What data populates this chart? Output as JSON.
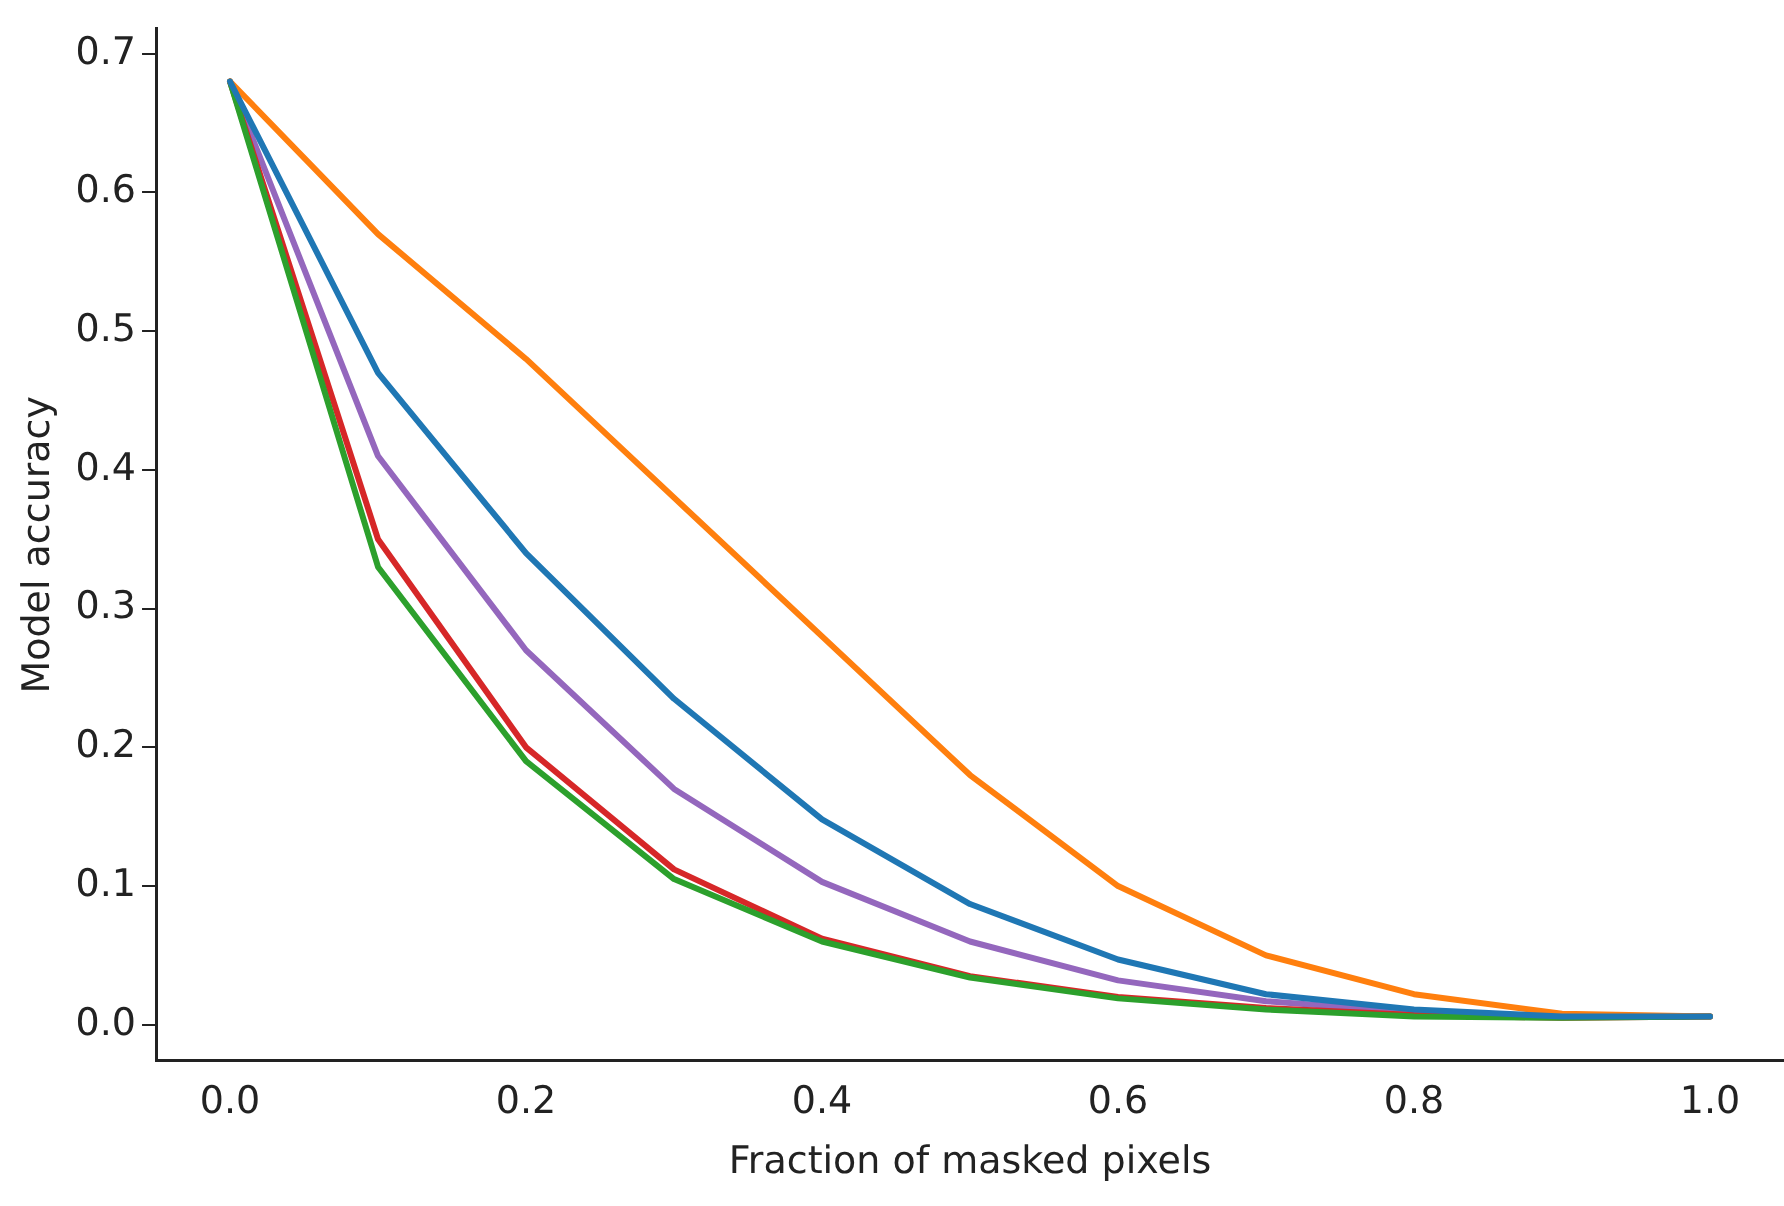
{
  "chart_data": {
    "type": "line",
    "xlabel": "Fraction of masked pixels",
    "ylabel": "Model accuracy",
    "x": [
      0.0,
      0.1,
      0.2,
      0.3,
      0.4,
      0.5,
      0.6,
      0.7,
      0.8,
      0.9,
      1.0
    ],
    "series": [
      {
        "color": "#1f77b4",
        "values": [
          0.68,
          0.47,
          0.34,
          0.235,
          0.148,
          0.087,
          0.047,
          0.022,
          0.011,
          0.006,
          0.006
        ]
      },
      {
        "color": "#ff7f0e",
        "values": [
          0.68,
          0.57,
          0.48,
          0.38,
          0.28,
          0.18,
          0.1,
          0.05,
          0.022,
          0.008,
          0.006
        ]
      },
      {
        "color": "#2ca02c",
        "values": [
          0.68,
          0.33,
          0.19,
          0.105,
          0.06,
          0.034,
          0.019,
          0.011,
          0.006,
          0.005,
          0.006
        ]
      },
      {
        "color": "#d62728",
        "values": [
          0.68,
          0.35,
          0.2,
          0.112,
          0.062,
          0.035,
          0.02,
          0.012,
          0.007,
          0.005,
          0.006
        ]
      },
      {
        "color": "#9467bd",
        "values": [
          0.68,
          0.41,
          0.27,
          0.17,
          0.103,
          0.06,
          0.032,
          0.017,
          0.009,
          0.006,
          0.006
        ]
      }
    ],
    "xlim": [
      -0.05,
      1.05
    ],
    "ylim": [
      -0.026,
      0.718
    ],
    "xticks": [
      {
        "value": 0,
        "label": "0.0"
      },
      {
        "value": 0.2,
        "label": "0.2"
      },
      {
        "value": 0.4,
        "label": "0.4"
      },
      {
        "value": 0.6,
        "label": "0.6"
      },
      {
        "value": 0.8,
        "label": "0.8"
      },
      {
        "value": 1,
        "label": "1.0"
      }
    ],
    "yticks": [
      {
        "value": 0,
        "label": "0.0"
      },
      {
        "value": 0.1,
        "label": "0.1"
      },
      {
        "value": 0.2,
        "label": "0.2"
      },
      {
        "value": 0.3,
        "label": "0.3"
      },
      {
        "value": 0.4,
        "label": "0.4"
      },
      {
        "value": 0.5,
        "label": "0.5"
      },
      {
        "value": 0.6,
        "label": "0.6"
      },
      {
        "value": 0.7,
        "label": "0.7"
      }
    ],
    "grid": false,
    "legend": false,
    "marker": "none",
    "line_style": "solid"
  }
}
